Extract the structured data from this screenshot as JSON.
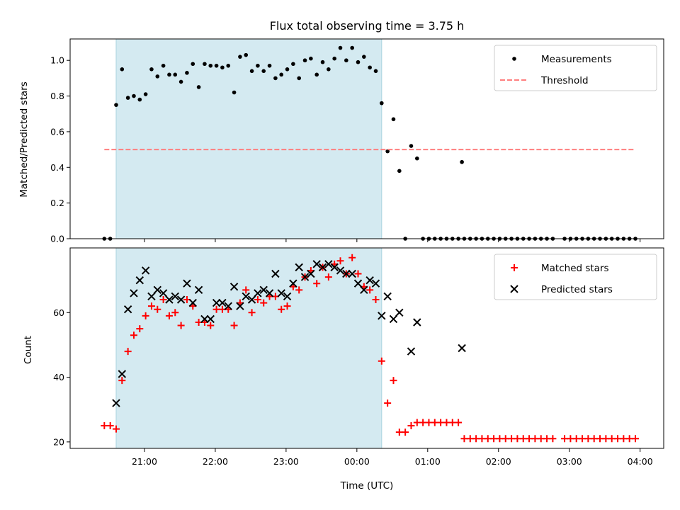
{
  "figure": {
    "title": "Flux total observing time = 3.75 h",
    "xlabel": "Time (UTC)",
    "xticks": [
      "21:00",
      "22:00",
      "23:00",
      "00:00",
      "01:00",
      "02:00",
      "03:00",
      "04:00"
    ],
    "shade_color": "#d4eaf1",
    "shade_edge": "#a9d3df",
    "shaded_span": [
      "20:36",
      "00:21"
    ]
  },
  "chart_data": [
    {
      "type": "scatter",
      "ylabel": "Matched/Predicted stars",
      "ylim": [
        0,
        1.12
      ],
      "yticks": [
        "0.0",
        "0.2",
        "0.4",
        "0.6",
        "0.8",
        "1.0"
      ],
      "legend_position": "top-right",
      "series": [
        {
          "name": "Measurements",
          "marker": "dot",
          "color": "#000000",
          "points": [
            [
              "20:26",
              0.0
            ],
            [
              "20:31",
              0.0
            ],
            [
              "20:36",
              0.75
            ],
            [
              "20:41",
              0.95
            ],
            [
              "20:46",
              0.79
            ],
            [
              "20:51",
              0.8
            ],
            [
              "20:56",
              0.78
            ],
            [
              "21:01",
              0.81
            ],
            [
              "21:06",
              0.95
            ],
            [
              "21:11",
              0.91
            ],
            [
              "21:16",
              0.97
            ],
            [
              "21:21",
              0.92
            ],
            [
              "21:26",
              0.92
            ],
            [
              "21:31",
              0.88
            ],
            [
              "21:36",
              0.93
            ],
            [
              "21:41",
              0.98
            ],
            [
              "21:46",
              0.85
            ],
            [
              "21:51",
              0.98
            ],
            [
              "21:56",
              0.97
            ],
            [
              "22:01",
              0.97
            ],
            [
              "22:06",
              0.96
            ],
            [
              "22:11",
              0.97
            ],
            [
              "22:16",
              0.82
            ],
            [
              "22:21",
              1.02
            ],
            [
              "22:26",
              1.03
            ],
            [
              "22:31",
              0.94
            ],
            [
              "22:36",
              0.97
            ],
            [
              "22:41",
              0.94
            ],
            [
              "22:46",
              0.97
            ],
            [
              "22:51",
              0.9
            ],
            [
              "22:56",
              0.92
            ],
            [
              "23:01",
              0.95
            ],
            [
              "23:06",
              0.98
            ],
            [
              "23:11",
              0.9
            ],
            [
              "23:16",
              1.0
            ],
            [
              "23:21",
              1.01
            ],
            [
              "23:26",
              0.92
            ],
            [
              "23:31",
              0.99
            ],
            [
              "23:36",
              0.95
            ],
            [
              "23:41",
              1.01
            ],
            [
              "23:46",
              1.07
            ],
            [
              "23:51",
              1.0
            ],
            [
              "23:56",
              1.07
            ],
            [
              "00:01",
              0.99
            ],
            [
              "00:06",
              1.02
            ],
            [
              "00:11",
              0.96
            ],
            [
              "00:16",
              0.94
            ],
            [
              "00:21",
              0.76
            ],
            [
              "00:26",
              0.49
            ],
            [
              "00:31",
              0.67
            ],
            [
              "00:36",
              0.38
            ],
            [
              "00:41",
              0.0
            ],
            [
              "00:46",
              0.52
            ],
            [
              "00:51",
              0.45
            ],
            [
              "00:56",
              0.0
            ],
            [
              "01:01",
              0.0
            ],
            [
              "01:06",
              0.0
            ],
            [
              "01:11",
              0.0
            ],
            [
              "01:16",
              0.0
            ],
            [
              "01:21",
              0.0
            ],
            [
              "01:26",
              0.0
            ],
            [
              "01:29",
              0.43
            ],
            [
              "01:31",
              0.0
            ],
            [
              "01:36",
              0.0
            ],
            [
              "01:41",
              0.0
            ],
            [
              "01:46",
              0.0
            ],
            [
              "01:51",
              0.0
            ],
            [
              "01:56",
              0.0
            ],
            [
              "02:01",
              0.0
            ],
            [
              "02:06",
              0.0
            ],
            [
              "02:11",
              0.0
            ],
            [
              "02:16",
              0.0
            ],
            [
              "02:21",
              0.0
            ],
            [
              "02:26",
              0.0
            ],
            [
              "02:31",
              0.0
            ],
            [
              "02:36",
              0.0
            ],
            [
              "02:41",
              0.0
            ],
            [
              "02:46",
              0.0
            ],
            [
              "02:56",
              0.0
            ],
            [
              "03:01",
              0.0
            ],
            [
              "03:06",
              0.0
            ],
            [
              "03:11",
              0.0
            ],
            [
              "03:16",
              0.0
            ],
            [
              "03:21",
              0.0
            ],
            [
              "03:26",
              0.0
            ],
            [
              "03:31",
              0.0
            ],
            [
              "03:36",
              0.0
            ],
            [
              "03:41",
              0.0
            ],
            [
              "03:46",
              0.0
            ],
            [
              "03:51",
              0.0
            ],
            [
              "03:56",
              0.0
            ]
          ]
        },
        {
          "name": "Threshold",
          "marker": "dashed-line",
          "color": "#ff7f7f",
          "points": [
            [
              "20:26",
              0.5
            ],
            [
              "03:56",
              0.5
            ]
          ]
        }
      ]
    },
    {
      "type": "scatter",
      "ylabel": "Count",
      "ylim": [
        18,
        80
      ],
      "yticks": [
        "20",
        "40",
        "60"
      ],
      "legend_position": "top-right",
      "series": [
        {
          "name": "Matched stars",
          "marker": "plus",
          "color": "#ff0000",
          "points": [
            [
              "20:26",
              25
            ],
            [
              "20:31",
              25
            ],
            [
              "20:36",
              24
            ],
            [
              "20:41",
              39
            ],
            [
              "20:46",
              48
            ],
            [
              "20:51",
              53
            ],
            [
              "20:56",
              55
            ],
            [
              "21:01",
              59
            ],
            [
              "21:06",
              62
            ],
            [
              "21:11",
              61
            ],
            [
              "21:16",
              64
            ],
            [
              "21:21",
              59
            ],
            [
              "21:26",
              60
            ],
            [
              "21:31",
              56
            ],
            [
              "21:36",
              64
            ],
            [
              "21:41",
              62
            ],
            [
              "21:46",
              57
            ],
            [
              "21:51",
              57
            ],
            [
              "21:56",
              56
            ],
            [
              "22:01",
              61
            ],
            [
              "22:06",
              61
            ],
            [
              "22:11",
              61
            ],
            [
              "22:16",
              56
            ],
            [
              "22:21",
              63
            ],
            [
              "22:26",
              67
            ],
            [
              "22:31",
              60
            ],
            [
              "22:36",
              64
            ],
            [
              "22:41",
              63
            ],
            [
              "22:46",
              65
            ],
            [
              "22:51",
              65
            ],
            [
              "22:56",
              61
            ],
            [
              "23:01",
              62
            ],
            [
              "23:06",
              68
            ],
            [
              "23:11",
              67
            ],
            [
              "23:16",
              71
            ],
            [
              "23:21",
              73
            ],
            [
              "23:26",
              69
            ],
            [
              "23:31",
              74
            ],
            [
              "23:36",
              71
            ],
            [
              "23:41",
              75
            ],
            [
              "23:46",
              76
            ],
            [
              "23:51",
              72
            ],
            [
              "23:56",
              77
            ],
            [
              "00:01",
              72
            ],
            [
              "00:06",
              68
            ],
            [
              "00:11",
              67
            ],
            [
              "00:16",
              64
            ],
            [
              "00:21",
              45
            ],
            [
              "00:26",
              32
            ],
            [
              "00:31",
              39
            ],
            [
              "00:36",
              23
            ],
            [
              "00:41",
              23
            ],
            [
              "00:46",
              25
            ],
            [
              "00:51",
              26
            ],
            [
              "00:56",
              26
            ],
            [
              "01:01",
              26
            ],
            [
              "01:06",
              26
            ],
            [
              "01:11",
              26
            ],
            [
              "01:16",
              26
            ],
            [
              "01:21",
              26
            ],
            [
              "01:26",
              26
            ],
            [
              "01:31",
              21
            ],
            [
              "01:36",
              21
            ],
            [
              "01:41",
              21
            ],
            [
              "01:46",
              21
            ],
            [
              "01:51",
              21
            ],
            [
              "01:56",
              21
            ],
            [
              "02:01",
              21
            ],
            [
              "02:06",
              21
            ],
            [
              "02:11",
              21
            ],
            [
              "02:16",
              21
            ],
            [
              "02:21",
              21
            ],
            [
              "02:26",
              21
            ],
            [
              "02:31",
              21
            ],
            [
              "02:36",
              21
            ],
            [
              "02:41",
              21
            ],
            [
              "02:46",
              21
            ],
            [
              "02:56",
              21
            ],
            [
              "03:01",
              21
            ],
            [
              "03:06",
              21
            ],
            [
              "03:11",
              21
            ],
            [
              "03:16",
              21
            ],
            [
              "03:21",
              21
            ],
            [
              "03:26",
              21
            ],
            [
              "03:31",
              21
            ],
            [
              "03:36",
              21
            ],
            [
              "03:41",
              21
            ],
            [
              "03:46",
              21
            ],
            [
              "03:51",
              21
            ],
            [
              "03:56",
              21
            ]
          ]
        },
        {
          "name": "Predicted stars",
          "marker": "x",
          "color": "#000000",
          "points": [
            [
              "20:36",
              32
            ],
            [
              "20:41",
              41
            ],
            [
              "20:46",
              61
            ],
            [
              "20:51",
              66
            ],
            [
              "20:56",
              70
            ],
            [
              "21:01",
              73
            ],
            [
              "21:06",
              65
            ],
            [
              "21:11",
              67
            ],
            [
              "21:16",
              66
            ],
            [
              "21:21",
              64
            ],
            [
              "21:26",
              65
            ],
            [
              "21:31",
              64
            ],
            [
              "21:36",
              69
            ],
            [
              "21:41",
              63
            ],
            [
              "21:46",
              67
            ],
            [
              "21:51",
              58
            ],
            [
              "21:56",
              58
            ],
            [
              "22:01",
              63
            ],
            [
              "22:06",
              63
            ],
            [
              "22:11",
              62
            ],
            [
              "22:16",
              68
            ],
            [
              "22:21",
              62
            ],
            [
              "22:26",
              65
            ],
            [
              "22:31",
              64
            ],
            [
              "22:36",
              66
            ],
            [
              "22:41",
              67
            ],
            [
              "22:46",
              66
            ],
            [
              "22:51",
              72
            ],
            [
              "22:56",
              66
            ],
            [
              "23:01",
              65
            ],
            [
              "23:06",
              69
            ],
            [
              "23:11",
              74
            ],
            [
              "23:16",
              71
            ],
            [
              "23:21",
              72
            ],
            [
              "23:26",
              75
            ],
            [
              "23:31",
              74
            ],
            [
              "23:36",
              75
            ],
            [
              "23:41",
              74
            ],
            [
              "23:46",
              73
            ],
            [
              "23:51",
              72
            ],
            [
              "23:56",
              72
            ],
            [
              "00:01",
              69
            ],
            [
              "00:06",
              67
            ],
            [
              "00:11",
              70
            ],
            [
              "00:16",
              69
            ],
            [
              "00:21",
              59
            ],
            [
              "00:26",
              65
            ],
            [
              "00:31",
              58
            ],
            [
              "00:36",
              60
            ],
            [
              "00:46",
              48
            ],
            [
              "00:51",
              57
            ],
            [
              "01:29",
              49
            ]
          ]
        }
      ]
    }
  ]
}
